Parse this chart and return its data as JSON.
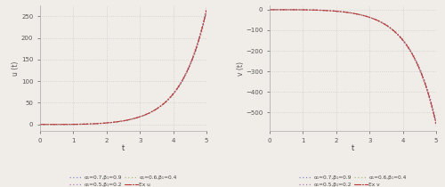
{
  "xlim": [
    0,
    5
  ],
  "u_ylim": [
    -15,
    275
  ],
  "v_ylim": [
    -590,
    20
  ],
  "u_yticks": [
    0,
    50,
    100,
    150,
    200,
    250
  ],
  "v_yticks": [
    -500,
    -400,
    -300,
    -200,
    -100,
    0
  ],
  "xticks": [
    0,
    1,
    2,
    3,
    4,
    5
  ],
  "xlabel": "t",
  "u_ylabel": "u (t)",
  "v_ylabel": "v (t)",
  "background_color": "#f0ede8",
  "grid_color": "#c8c8c8",
  "line_color_1": "#8888cc",
  "line_color_2": "#aa77bb",
  "line_color_3": "#aabb88",
  "line_color_ex": "#bb3333",
  "legend_labels_u": [
    "α₁=0.7,β₁=0.9",
    "α₁=0.5,β₁=0.2",
    "α₁=0.6,β₁=0.4",
    "Ex u"
  ],
  "legend_labels_v": [
    "α₁=0.7,β₁=0.9",
    "α₁=0.5,β₁=0.2",
    "α₁=0.6,β₁=0.4",
    "Ex v"
  ],
  "n_points": 400,
  "u_scale": 1.1,
  "v_scale": 4.35,
  "u_power": 5.5,
  "v_power": 4.2
}
